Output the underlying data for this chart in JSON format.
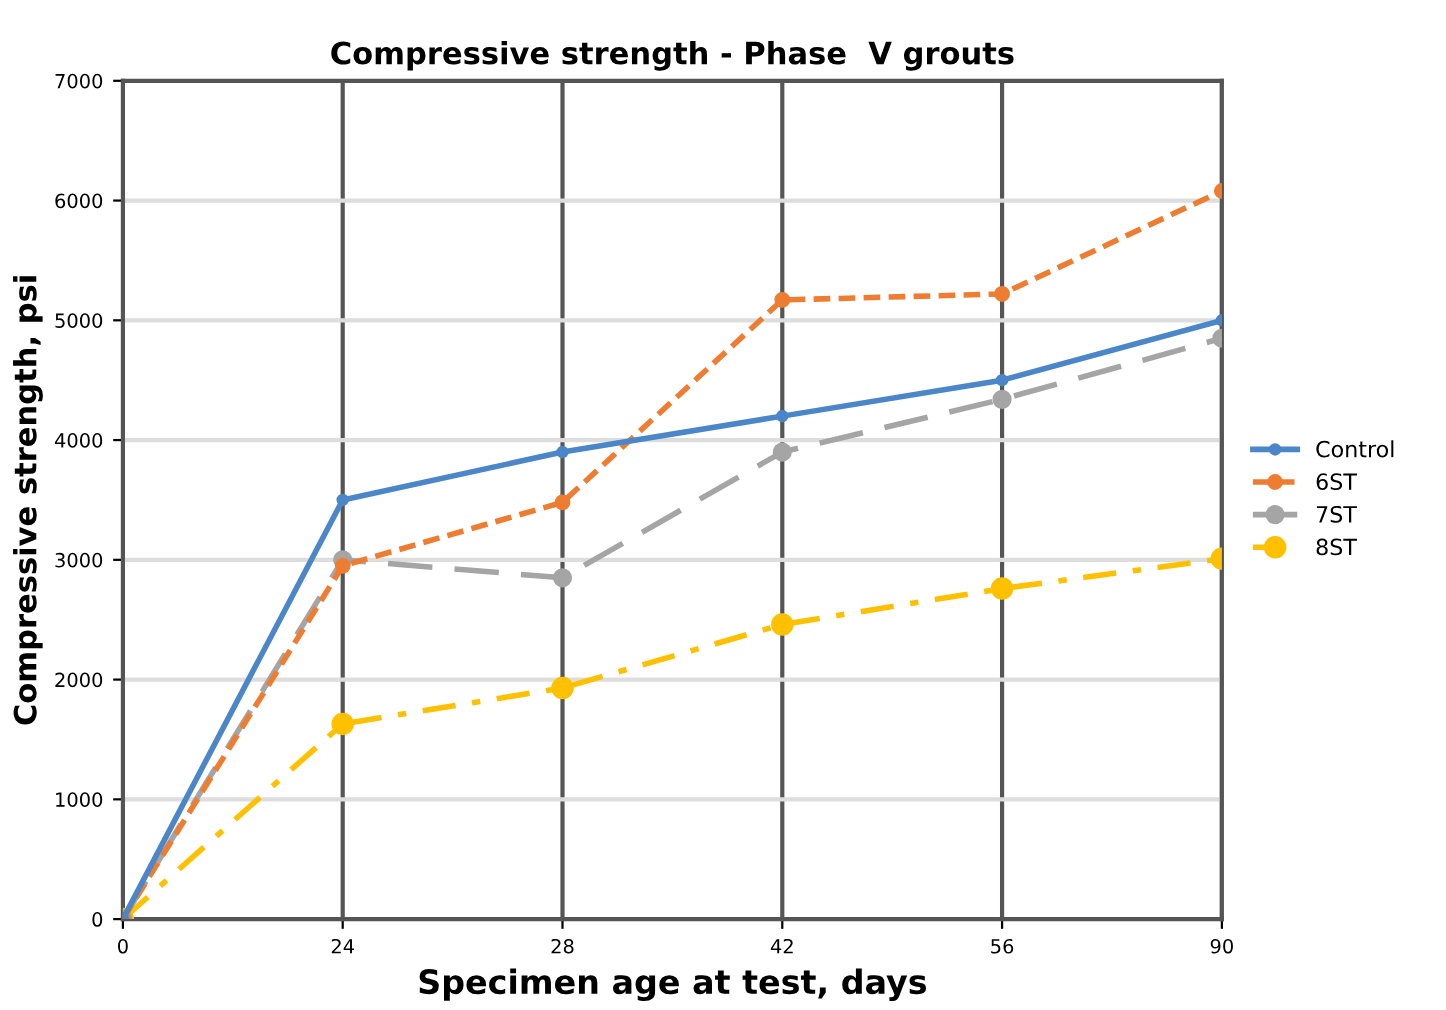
{
  "chart_data": {
    "type": "line",
    "title": "Compressive strength - Phase  V grouts",
    "xlabel": "Specimen age at test, days",
    "ylabel": "Compressive strength, psi",
    "categories": [
      "0",
      "24",
      "28",
      "42",
      "56",
      "90"
    ],
    "series": [
      {
        "name": "Control",
        "color": "#4a86c8",
        "line_style": "solid",
        "values": [
          0,
          3500,
          3900,
          4200,
          4500,
          5000
        ]
      },
      {
        "name": "6ST",
        "color": "#ee7d31",
        "line_style": "dotted",
        "values": [
          0,
          2950,
          3480,
          5170,
          5220,
          6080
        ]
      },
      {
        "name": "7ST",
        "color": "#a5a5a5",
        "line_style": "dashed",
        "values": [
          0,
          3000,
          2850,
          3900,
          4340,
          4850
        ]
      },
      {
        "name": "8ST",
        "color": "#ffc000",
        "line_style": "dashdot",
        "values": [
          0,
          1630,
          1930,
          2460,
          2760,
          3010
        ]
      }
    ],
    "ylim": [
      0,
      7000
    ],
    "yticks": [
      0,
      1000,
      2000,
      3000,
      4000,
      5000,
      6000,
      7000
    ],
    "grid": true,
    "legend": "right",
    "marker": "circle"
  }
}
